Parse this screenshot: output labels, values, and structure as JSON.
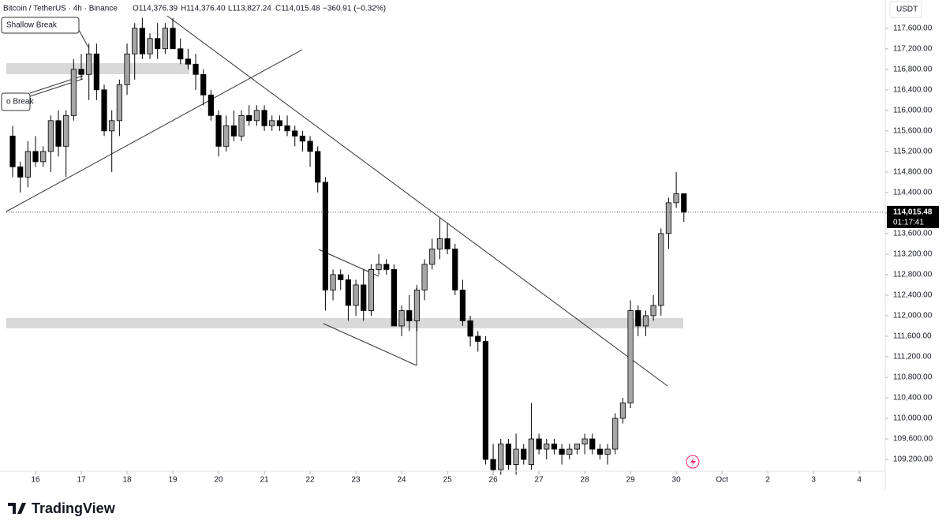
{
  "chart_data": {
    "type": "candlestick",
    "header": {
      "symbol": "Bitcoin / TetherUS · 4h · Binance",
      "open": "O114,376.39",
      "high": "H114,376.40",
      "low": "L113,827.24",
      "close": "C114,015.48",
      "change": "−360.91 (−0.32%)"
    },
    "annotations": [
      "Shallow Break",
      "o Break"
    ],
    "currency": "USDT",
    "countdown": "01:17:41",
    "last_price_label": "114,015.48",
    "brand": "TradingView",
    "up_color": "#a6a6a6",
    "down_color": "#000000",
    "candles": [
      [
        115500,
        115700,
        114700,
        114900
      ],
      [
        114900,
        115000,
        114400,
        114700
      ],
      [
        114700,
        115400,
        114500,
        115200
      ],
      [
        115200,
        115500,
        114900,
        115000
      ],
      [
        115000,
        115300,
        114900,
        115200
      ],
      [
        115200,
        115900,
        114800,
        115800
      ],
      [
        115800,
        116000,
        115100,
        115300
      ],
      [
        115300,
        116000,
        114700,
        115900
      ],
      [
        115900,
        117000,
        115800,
        116800
      ],
      [
        116800,
        117100,
        116600,
        116700
      ],
      [
        116700,
        117300,
        116200,
        117100
      ],
      [
        117100,
        117300,
        116200,
        116400
      ],
      [
        116400,
        116500,
        115500,
        115600
      ],
      [
        115600,
        116000,
        114800,
        115800
      ],
      [
        115800,
        116600,
        115500,
        116500
      ],
      [
        116500,
        117300,
        116300,
        117100
      ],
      [
        117100,
        117700,
        116600,
        117600
      ],
      [
        117600,
        117800,
        117000,
        117100
      ],
      [
        117100,
        117500,
        117000,
        117400
      ],
      [
        117400,
        117700,
        117000,
        117200
      ],
      [
        117200,
        117700,
        117100,
        117600
      ],
      [
        117600,
        117800,
        117200,
        117200
      ],
      [
        117200,
        117400,
        116900,
        117000
      ],
      [
        117000,
        117200,
        116800,
        116900
      ],
      [
        116900,
        117100,
        116400,
        116700
      ],
      [
        116700,
        116800,
        116100,
        116300
      ],
      [
        116300,
        116400,
        115800,
        115900
      ],
      [
        115900,
        116000,
        115100,
        115300
      ],
      [
        115300,
        115900,
        115200,
        115700
      ],
      [
        115700,
        116000,
        115400,
        115500
      ],
      [
        115500,
        116000,
        115400,
        115900
      ],
      [
        115900,
        116100,
        115700,
        115800
      ],
      [
        115800,
        116100,
        115700,
        116000
      ],
      [
        116000,
        116100,
        115600,
        115700
      ],
      [
        115700,
        115900,
        115600,
        115800
      ],
      [
        115800,
        115900,
        115600,
        115700
      ],
      [
        115700,
        115900,
        115500,
        115600
      ],
      [
        115600,
        115700,
        115300,
        115500
      ],
      [
        115500,
        115600,
        115200,
        115400
      ],
      [
        115400,
        115500,
        114900,
        115200
      ],
      [
        115200,
        115300,
        114400,
        114600
      ],
      [
        114600,
        114700,
        112100,
        112500
      ],
      [
        112500,
        112900,
        112300,
        112800
      ],
      [
        112800,
        112900,
        112500,
        112700
      ],
      [
        112700,
        112800,
        111900,
        112200
      ],
      [
        112200,
        112700,
        112000,
        112600
      ],
      [
        112600,
        112900,
        111900,
        112100
      ],
      [
        112100,
        113000,
        112000,
        112900
      ],
      [
        112900,
        113200,
        112800,
        113000
      ],
      [
        113000,
        113100,
        112800,
        112900
      ],
      [
        112900,
        113000,
        111800,
        111800
      ],
      [
        111800,
        112200,
        111600,
        112100
      ],
      [
        112100,
        112400,
        111700,
        111900
      ],
      [
        111900,
        112600,
        111700,
        112500
      ],
      [
        112500,
        113100,
        112300,
        113000
      ],
      [
        113000,
        113500,
        112900,
        113300
      ],
      [
        113300,
        113900,
        113100,
        113500
      ],
      [
        113500,
        113800,
        113200,
        113300
      ],
      [
        113300,
        113400,
        112400,
        112500
      ],
      [
        112500,
        112700,
        111800,
        111900
      ],
      [
        111900,
        112000,
        111400,
        111600
      ],
      [
        111600,
        111700,
        111300,
        111500
      ],
      [
        111500,
        111600,
        109100,
        109200
      ],
      [
        109200,
        109500,
        108900,
        109000
      ],
      [
        109000,
        109600,
        108900,
        109500
      ],
      [
        109500,
        109600,
        109000,
        109100
      ],
      [
        109100,
        109700,
        108900,
        109400
      ],
      [
        109400,
        109500,
        109100,
        109200
      ],
      [
        109100,
        110300,
        109000,
        109600
      ],
      [
        109600,
        109700,
        109300,
        109400
      ],
      [
        109400,
        109600,
        109200,
        109500
      ],
      [
        109500,
        109600,
        109300,
        109400
      ],
      [
        109400,
        109500,
        109100,
        109300
      ],
      [
        109300,
        109500,
        109200,
        109400
      ],
      [
        109400,
        109500,
        109300,
        109500
      ],
      [
        109500,
        109700,
        109300,
        109600
      ],
      [
        109600,
        109700,
        109300,
        109400
      ],
      [
        109400,
        109500,
        109200,
        109300
      ],
      [
        109300,
        109500,
        109100,
        109400
      ],
      [
        109400,
        110100,
        109300,
        110000
      ],
      [
        110000,
        110400,
        109900,
        110300
      ],
      [
        110300,
        112300,
        110200,
        112100
      ],
      [
        112100,
        112200,
        111600,
        111800
      ],
      [
        111800,
        112100,
        111600,
        112000
      ],
      [
        112000,
        112400,
        111900,
        112200
      ],
      [
        112200,
        113700,
        112000,
        113600
      ],
      [
        113600,
        114300,
        113300,
        114200
      ],
      [
        114200,
        114800,
        114100,
        114376.39
      ],
      [
        114376.39,
        114376.4,
        113827.24,
        114015.48
      ]
    ],
    "xlim": [
      -0.83,
      114.4
    ],
    "xticks": [
      {
        "value": 3,
        "label": "16"
      },
      {
        "value": 9,
        "label": "17"
      },
      {
        "value": 15,
        "label": "18"
      },
      {
        "value": 21,
        "label": "19"
      },
      {
        "value": 27,
        "label": "20"
      },
      {
        "value": 33,
        "label": "21"
      },
      {
        "value": 39,
        "label": "22"
      },
      {
        "value": 45,
        "label": "23"
      },
      {
        "value": 51,
        "label": "24"
      },
      {
        "value": 57,
        "label": "25"
      },
      {
        "value": 63,
        "label": "26"
      },
      {
        "value": 69,
        "label": "27"
      },
      {
        "value": 75,
        "label": "28"
      },
      {
        "value": 81,
        "label": "29"
      },
      {
        "value": 87,
        "label": "30"
      },
      {
        "value": 93,
        "label": "Oct"
      },
      {
        "value": 99,
        "label": "2"
      },
      {
        "value": 105,
        "label": "3"
      },
      {
        "value": 111,
        "label": "4"
      }
    ],
    "ylim": [
      108970,
      118150
    ],
    "yticks": [
      {
        "value": 109200,
        "label": "109,200.00"
      },
      {
        "value": 109600,
        "label": "109,600.00"
      },
      {
        "value": 110000,
        "label": "110,000.00"
      },
      {
        "value": 110400,
        "label": "110,400.00"
      },
      {
        "value": 110800,
        "label": "110,800.00"
      },
      {
        "value": 111200,
        "label": "111,200.00"
      },
      {
        "value": 111600,
        "label": "111,600.00"
      },
      {
        "value": 112000,
        "label": "112,000.00"
      },
      {
        "value": 112400,
        "label": "112,400.00"
      },
      {
        "value": 112800,
        "label": "112,800.00"
      },
      {
        "value": 113200,
        "label": "113,200.00"
      },
      {
        "value": 113600,
        "label": "113,600.00"
      },
      {
        "value": 114000,
        "label": "114,000.00"
      },
      {
        "value": 114400,
        "label": "114,400.00"
      },
      {
        "value": 114800,
        "label": "114,800.00"
      },
      {
        "value": 115200,
        "label": "115,200.00"
      },
      {
        "value": 115600,
        "label": "115,600.00"
      },
      {
        "value": 116000,
        "label": "116,000.00"
      },
      {
        "value": 116400,
        "label": "116,400.00"
      },
      {
        "value": 116800,
        "label": "116,800.00"
      },
      {
        "value": 117200,
        "label": "117,200.00"
      },
      {
        "value": 117600,
        "label": "117,600.00"
      }
    ]
  }
}
